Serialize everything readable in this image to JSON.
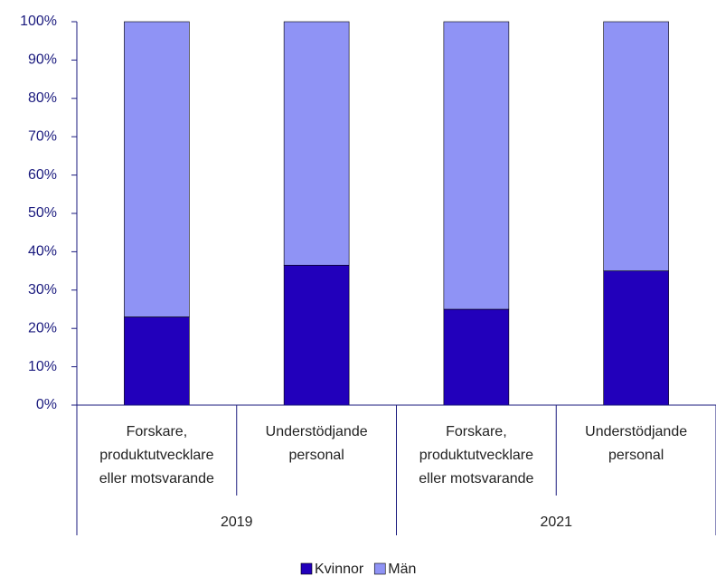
{
  "chart_data": {
    "type": "stacked_bar",
    "categories": [
      [
        "Forskare,",
        "produktutvecklare",
        "eller motsvarande"
      ],
      [
        "Understödjande",
        "personal"
      ],
      [
        "Forskare,",
        "produktutvecklare",
        "eller motsvarande"
      ],
      [
        "Understödjande",
        "personal"
      ]
    ],
    "group_labels": [
      "2019",
      "2021"
    ],
    "series": [
      {
        "name": "Kvinnor",
        "color": "#2200bb",
        "values": [
          23,
          36.5,
          25,
          35
        ]
      },
      {
        "name": "Män",
        "color": "#8f93f5",
        "values": [
          77,
          63.5,
          75,
          65
        ]
      }
    ],
    "ylim": [
      0,
      100
    ],
    "yticks": [
      {
        "value": 0,
        "label": "0%"
      },
      {
        "value": 10,
        "label": "10%"
      },
      {
        "value": 20,
        "label": "20%"
      },
      {
        "value": 30,
        "label": "30%"
      },
      {
        "value": 40,
        "label": "40%"
      },
      {
        "value": 50,
        "label": "50%"
      },
      {
        "value": 60,
        "label": "60%"
      },
      {
        "value": 70,
        "label": "70%"
      },
      {
        "value": 80,
        "label": "80%"
      },
      {
        "value": 90,
        "label": "90%"
      },
      {
        "value": 100,
        "label": "100%"
      }
    ],
    "legend": "bottom"
  }
}
